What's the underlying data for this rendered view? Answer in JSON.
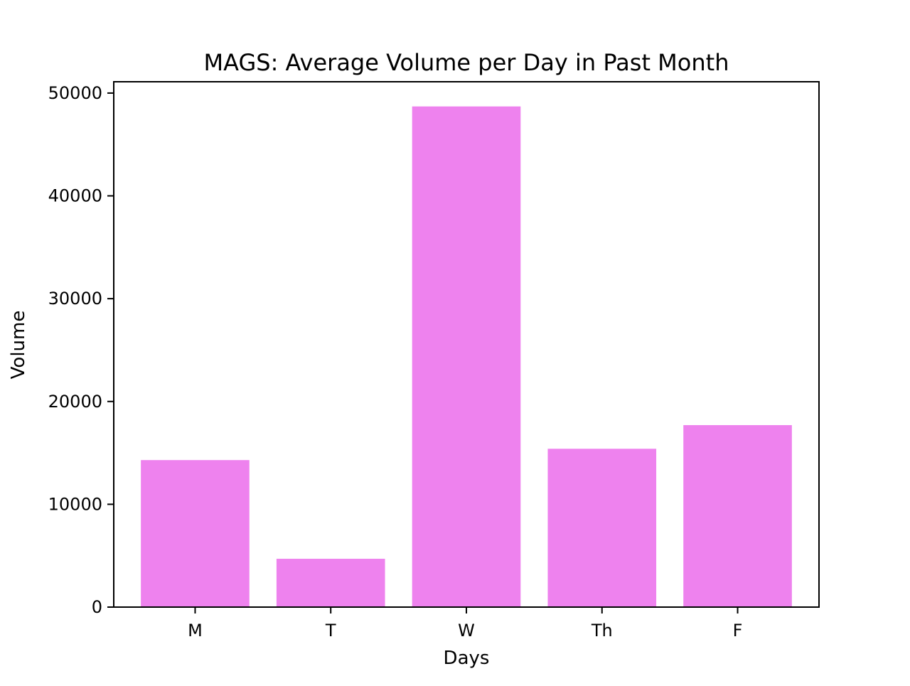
{
  "chart_data": {
    "type": "bar",
    "title": "MAGS: Average Volume per Day in Past Month",
    "xlabel": "Days",
    "ylabel": "Volume",
    "categories": [
      "M",
      "T",
      "W",
      "Th",
      "F"
    ],
    "values": [
      14300,
      4700,
      48700,
      15400,
      17700
    ],
    "ylim": [
      0,
      51100
    ],
    "yticks": [
      0,
      10000,
      20000,
      30000,
      40000,
      50000
    ],
    "ytick_labels": [
      "0",
      "10000",
      "20000",
      "30000",
      "40000",
      "50000"
    ],
    "bar_color": "#ee82ee",
    "grid": false,
    "legend": "none"
  }
}
